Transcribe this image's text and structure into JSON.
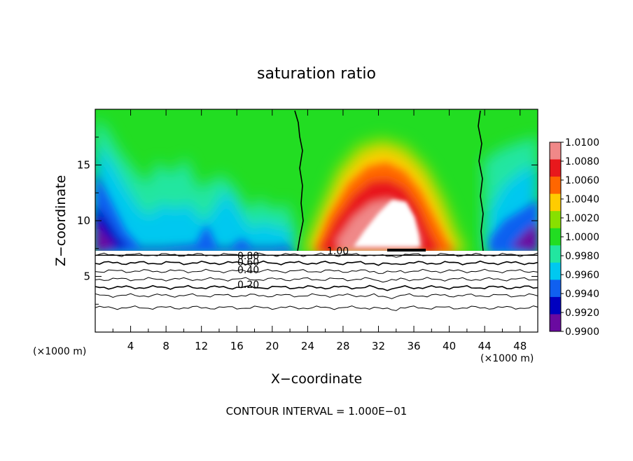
{
  "chart_data": {
    "type": "contour",
    "title": "saturation ratio",
    "xlabel": "X−coordinate",
    "ylabel": "Z−coordinate",
    "x_unit_left": "(×1000 m)",
    "x_unit_right": "(×1000 m)",
    "footer": "CONTOUR INTERVAL = 1.000E−01",
    "xlim": [
      0,
      50
    ],
    "ylim": [
      0,
      20
    ],
    "x_ticks": [
      4,
      8,
      12,
      16,
      20,
      24,
      28,
      32,
      36,
      40,
      44,
      48
    ],
    "y_ticks": [
      5,
      10,
      15
    ],
    "colorbar": {
      "labels": [
        "1.0100",
        "1.0080",
        "1.0060",
        "1.0040",
        "1.0020",
        "1.0000",
        "0.9980",
        "0.9960",
        "0.9940",
        "0.9920",
        "0.9900"
      ],
      "colors": [
        "#f08888",
        "#e8181c",
        "#ff6600",
        "#ffcc00",
        "#88e000",
        "#22dd22",
        "#22e6a0",
        "#00c8f0",
        "#1060f0",
        "#0000c0",
        "#6a0aa0"
      ]
    },
    "contour_labels": [
      "0.80",
      "0.60",
      "0.40",
      "0.20",
      "1.00"
    ],
    "contour_levels": [
      0.3,
      0.45,
      0.55,
      0.65,
      0.75,
      0.85,
      0.95
    ],
    "cloud_base_z": 7.3,
    "green_region_x": [
      22.7,
      43.5
    ]
  }
}
